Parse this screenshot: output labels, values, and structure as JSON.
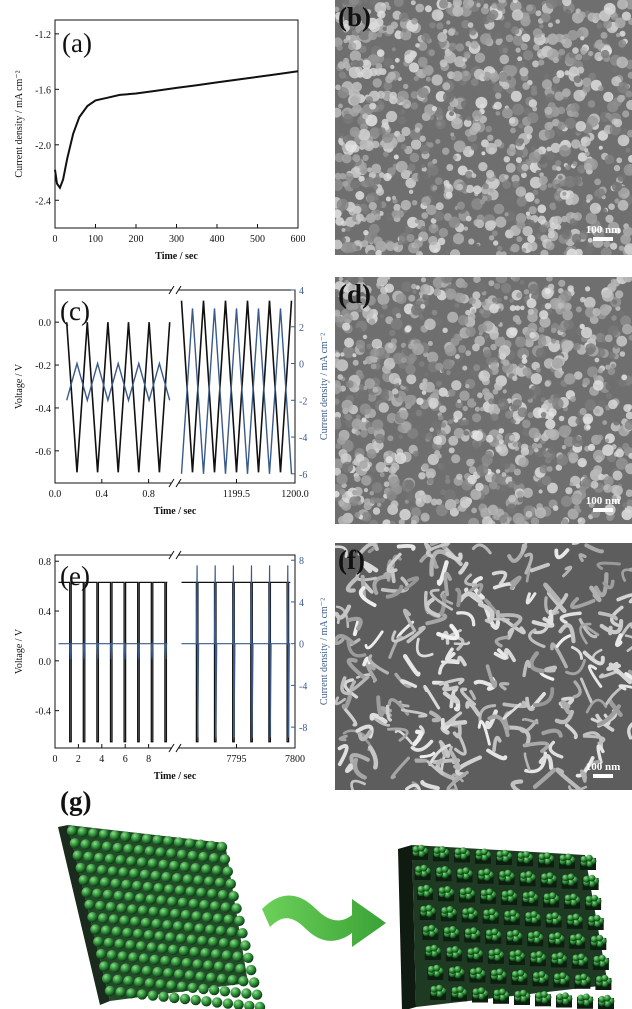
{
  "panels": {
    "a": {
      "label": "(a)"
    },
    "b": {
      "label": "(b)",
      "scale": "100 nm"
    },
    "c": {
      "label": "(c)"
    },
    "d": {
      "label": "(d)",
      "scale": "100 nm"
    },
    "e": {
      "label": "(e)"
    },
    "f": {
      "label": "(f)",
      "scale": "100 nm"
    },
    "g": {
      "label": "(g)"
    }
  },
  "colors": {
    "black_curve": "#111111",
    "blue_curve": "#3a5a8c",
    "sphere": "#2f8f3a",
    "arrow": "#5cc24a"
  },
  "chart_data": [
    {
      "id": "a",
      "type": "line",
      "xlabel": "Time / sec",
      "ylabel": "Current density / mA cm⁻²",
      "xlim": [
        0,
        600
      ],
      "ylim": [
        -2.6,
        -1.1
      ],
      "xticks": [
        0,
        100,
        200,
        300,
        400,
        500,
        600
      ],
      "yticks": [
        -1.2,
        -1.6,
        -2.0,
        -2.4
      ],
      "ytick_labels": [
        "-1.2",
        "-1.6",
        "-2.0",
        "-2.4"
      ],
      "series": [
        {
          "x": [
            0,
            5,
            12,
            20,
            30,
            45,
            60,
            80,
            100,
            130,
            160,
            200,
            250,
            300,
            350,
            400,
            450,
            500,
            550,
            600
          ],
          "y": [
            -2.18,
            -2.28,
            -2.31,
            -2.25,
            -2.1,
            -1.92,
            -1.8,
            -1.72,
            -1.68,
            -1.66,
            -1.64,
            -1.63,
            -1.61,
            -1.59,
            -1.57,
            -1.55,
            -1.53,
            -1.51,
            -1.49,
            -1.47
          ]
        }
      ]
    },
    {
      "id": "c",
      "type": "line",
      "xlabel": "Time / sec",
      "ylabel": "Voltage / V",
      "ylabel_right": "Current density / mA cm⁻²",
      "ylim": [
        -0.75,
        0.15
      ],
      "yticks": [
        0.0,
        -0.2,
        -0.4,
        -0.6
      ],
      "ytick_labels": [
        "0.0",
        "-0.2",
        "-0.4",
        "-0.6"
      ],
      "ylim_right": [
        -6.5,
        4
      ],
      "yticks_right": [
        4,
        2,
        0,
        -2,
        -4,
        -6
      ],
      "segments": [
        {
          "xlim": [
            0,
            1.0
          ],
          "xticks": [
            0.0,
            0.4,
            0.8
          ],
          "xtick_labels": [
            "0.0",
            "0.4",
            "0.8"
          ],
          "voltage_range": [
            -0.7,
            0.0
          ],
          "current_range": [
            -2,
            0
          ],
          "cycles": 5
        },
        {
          "xlim": [
            1199.0,
            1200.0
          ],
          "xticks": [
            1199.5,
            1200.0
          ],
          "xtick_labels": [
            "1199.5",
            "1200.0"
          ],
          "voltage_range": [
            -0.7,
            0.1
          ],
          "current_range": [
            -6,
            3
          ],
          "cycles": 5
        }
      ]
    },
    {
      "id": "e",
      "type": "line",
      "xlabel": "Time / sec",
      "ylabel": "Voltage / V",
      "ylabel_right": "Current density / mA cm⁻²",
      "ylim": [
        -0.7,
        0.85
      ],
      "yticks": [
        0.8,
        0.4,
        0.0,
        -0.4
      ],
      "ytick_labels": [
        "0.8",
        "0.4",
        "0.0",
        "-0.4"
      ],
      "ylim_right": [
        -10,
        8.5
      ],
      "yticks_right": [
        8,
        4,
        0,
        -4,
        -8
      ],
      "segments": [
        {
          "xlim": [
            0,
            10
          ],
          "xticks": [
            0,
            2,
            4,
            6,
            8
          ],
          "xtick_labels": [
            "0",
            "2",
            "4",
            "6",
            "8"
          ],
          "pulse_high_V": 0.63,
          "pulse_low_V": -0.65,
          "pulses": 8
        },
        {
          "xlim": [
            7790,
            7800
          ],
          "xticks": [
            7795,
            7800
          ],
          "xtick_labels": [
            "7795",
            "7800"
          ],
          "pulse_high_V": 0.63,
          "pulse_low_V": -0.65,
          "pulses": 6
        }
      ]
    }
  ]
}
